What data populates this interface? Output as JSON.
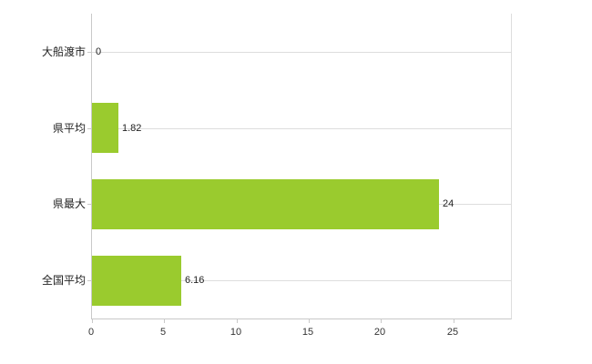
{
  "chart_data": {
    "type": "bar",
    "orientation": "horizontal",
    "title": "",
    "categories": [
      "大船渡市",
      "県平均",
      "県最大",
      "全国平均"
    ],
    "values": [
      0,
      1.82,
      24,
      6.16
    ],
    "value_labels": [
      "0",
      "1.82",
      "24",
      "6.16"
    ],
    "xlabel": "",
    "ylabel": "",
    "xlim": [
      0,
      29
    ],
    "x_ticks": [
      0,
      5,
      10,
      15,
      20,
      25
    ],
    "x_tick_labels": [
      "0",
      "5",
      "10",
      "15",
      "20",
      "25"
    ],
    "grid": true,
    "legend_position": "none",
    "bar_color": "#9acb2e",
    "axis_color": "#c9c9c9",
    "grid_color": "#dddddd",
    "text_color": "#222222",
    "background_color": "#ffffff"
  }
}
